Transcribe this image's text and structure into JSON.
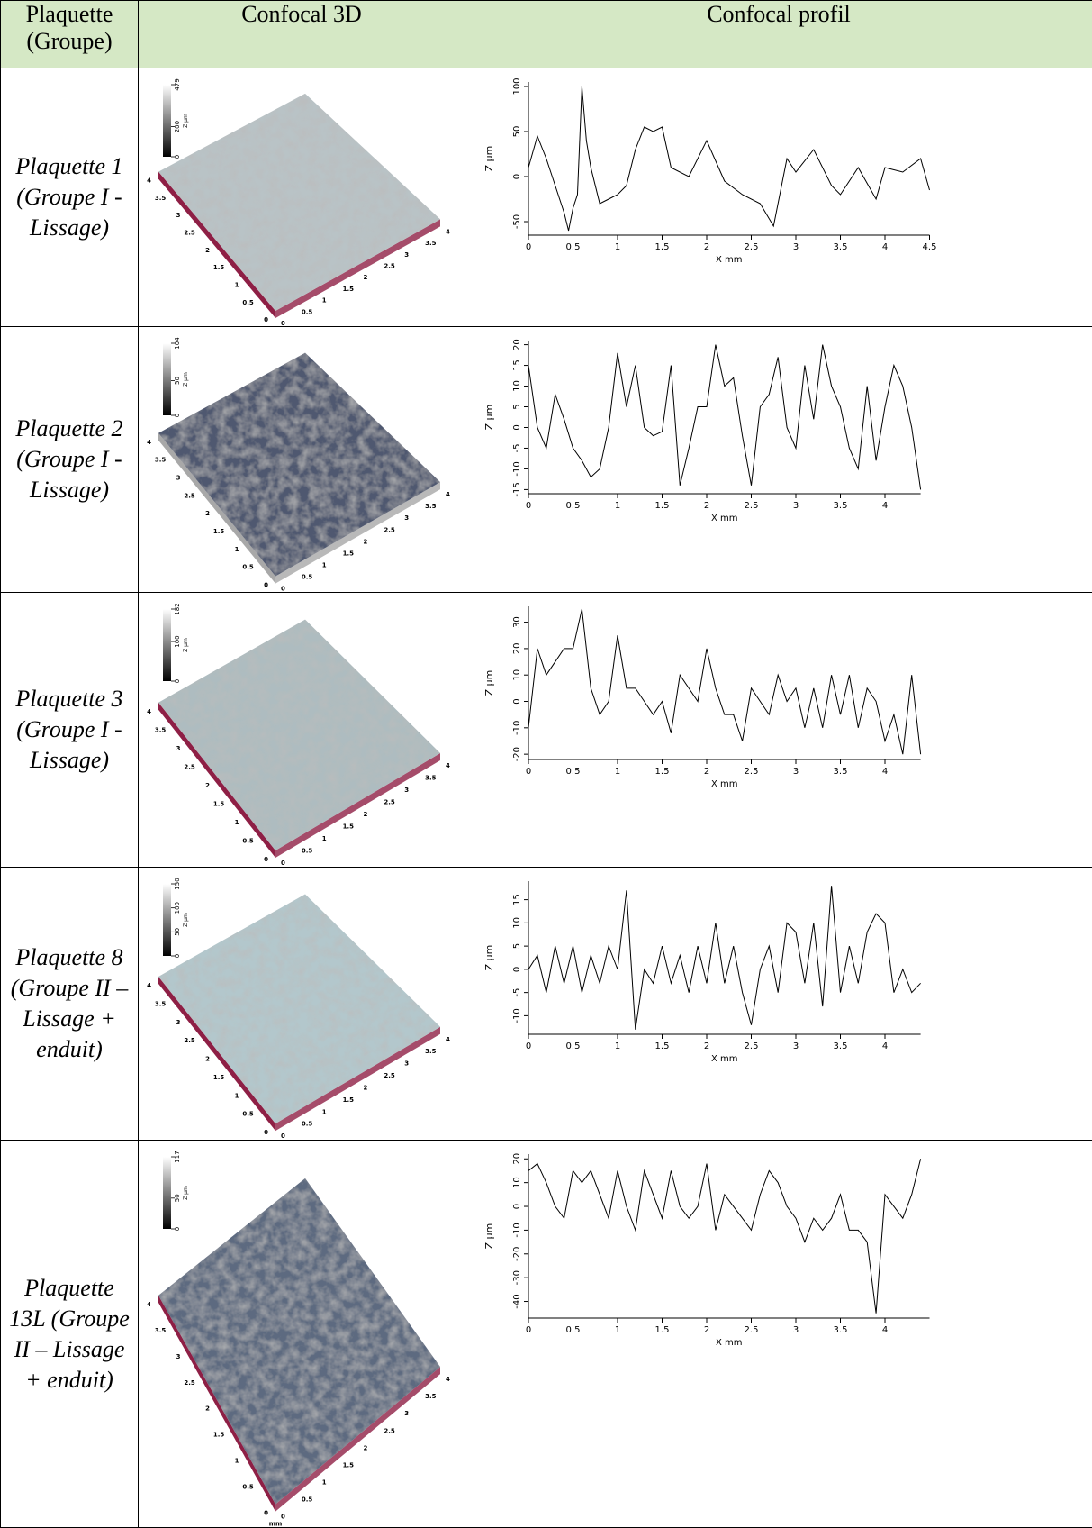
{
  "table": {
    "header": [
      "Plaquette (Groupe)",
      "Confocal 3D",
      "Confocal profil"
    ],
    "rows": [
      {
        "label": "Plaquette 1 (Groupe I - Lissage)",
        "surface": {
          "zticks": [
            0,
            200,
            479
          ],
          "zlabel": "Z µm",
          "unit": "mm",
          "axis_ticks": [
            0,
            0.5,
            1,
            1.5,
            2,
            2.5,
            3,
            3.5,
            4
          ],
          "color": "#b9c3c6",
          "edge_color": "#8e1f45"
        },
        "profile": {
          "type": "line",
          "xlabel": "X mm",
          "ylabel": "Z µm",
          "xlim": [
            0,
            4.5
          ],
          "xticks": [
            0,
            0.5,
            1,
            1.5,
            2,
            2.5,
            3,
            3.5,
            4,
            4.5
          ],
          "ylim": [
            -65,
            105
          ],
          "yticks": [
            -50,
            0,
            50,
            100
          ],
          "x": [
            0,
            0.1,
            0.2,
            0.3,
            0.4,
            0.45,
            0.5,
            0.55,
            0.6,
            0.65,
            0.7,
            0.8,
            0.9,
            1.0,
            1.1,
            1.2,
            1.3,
            1.4,
            1.5,
            1.6,
            1.8,
            2.0,
            2.2,
            2.4,
            2.6,
            2.75,
            2.9,
            3.0,
            3.2,
            3.4,
            3.5,
            3.7,
            3.9,
            4.0,
            4.2,
            4.4,
            4.5
          ],
          "values": [
            10,
            45,
            20,
            -10,
            -40,
            -60,
            -35,
            -20,
            100,
            40,
            10,
            -30,
            -25,
            -20,
            -10,
            30,
            55,
            50,
            55,
            10,
            0,
            40,
            -5,
            -20,
            -30,
            -55,
            20,
            5,
            30,
            -10,
            -20,
            10,
            -25,
            10,
            5,
            20,
            -15
          ]
        }
      },
      {
        "label": "Plaquette 2 (Groupe I - Lissage)",
        "surface": {
          "zticks": [
            0,
            50,
            104
          ],
          "zlabel": "Z µm",
          "unit": "mm",
          "axis_ticks": [
            0,
            0.5,
            1,
            1.5,
            2,
            2.5,
            3,
            3.5,
            4
          ],
          "color": "#4f5870",
          "edge_color": "#a8a8a8"
        },
        "profile": {
          "type": "line",
          "xlabel": "X mm",
          "ylabel": "Z µm",
          "xlim": [
            0,
            4.4
          ],
          "xticks": [
            0,
            0.5,
            1,
            1.5,
            2,
            2.5,
            3,
            3.5,
            4
          ],
          "ylim": [
            -16,
            21
          ],
          "yticks": [
            -15,
            -10,
            -5,
            0,
            5,
            10,
            15,
            20
          ],
          "x": [
            0,
            0.1,
            0.2,
            0.3,
            0.4,
            0.5,
            0.6,
            0.7,
            0.8,
            0.9,
            1.0,
            1.1,
            1.2,
            1.3,
            1.4,
            1.5,
            1.6,
            1.7,
            1.8,
            1.9,
            2.0,
            2.1,
            2.2,
            2.3,
            2.4,
            2.5,
            2.6,
            2.7,
            2.8,
            2.9,
            3.0,
            3.1,
            3.2,
            3.3,
            3.4,
            3.5,
            3.6,
            3.7,
            3.8,
            3.9,
            4.0,
            4.1,
            4.2,
            4.3,
            4.4
          ],
          "values": [
            15,
            0,
            -5,
            8,
            2,
            -5,
            -8,
            -12,
            -10,
            0,
            18,
            5,
            15,
            0,
            -2,
            -1,
            15,
            -14,
            -5,
            5,
            5,
            20,
            10,
            12,
            -2,
            -14,
            5,
            8,
            17,
            0,
            -5,
            15,
            2,
            20,
            10,
            5,
            -5,
            -10,
            10,
            -8,
            5,
            15,
            10,
            0,
            -15
          ]
        }
      },
      {
        "label": "Plaquette 3 (Groupe I - Lissage)",
        "surface": {
          "zticks": [
            0,
            100,
            182
          ],
          "zlabel": "Z µm",
          "unit": "mm",
          "axis_ticks": [
            0,
            0.5,
            1,
            1.5,
            2,
            2.5,
            3,
            3.5,
            4
          ],
          "color": "#aebcc0",
          "edge_color": "#8e1f45"
        },
        "profile": {
          "type": "line",
          "xlabel": "X mm",
          "ylabel": "Z µm",
          "xlim": [
            0,
            4.4
          ],
          "xticks": [
            0,
            0.5,
            1,
            1.5,
            2,
            2.5,
            3,
            3.5,
            4
          ],
          "ylim": [
            -22,
            36
          ],
          "yticks": [
            -20,
            -10,
            0,
            10,
            20,
            30
          ],
          "x": [
            0,
            0.1,
            0.2,
            0.3,
            0.4,
            0.5,
            0.6,
            0.7,
            0.8,
            0.9,
            1.0,
            1.1,
            1.2,
            1.3,
            1.4,
            1.5,
            1.6,
            1.7,
            1.8,
            1.9,
            2.0,
            2.1,
            2.2,
            2.3,
            2.4,
            2.5,
            2.6,
            2.7,
            2.8,
            2.9,
            3.0,
            3.1,
            3.2,
            3.3,
            3.4,
            3.5,
            3.6,
            3.7,
            3.8,
            3.9,
            4.0,
            4.1,
            4.2,
            4.3,
            4.4
          ],
          "values": [
            -10,
            20,
            10,
            15,
            20,
            20,
            35,
            5,
            -5,
            0,
            25,
            5,
            5,
            0,
            -5,
            0,
            -12,
            10,
            5,
            0,
            20,
            5,
            -5,
            -5,
            -15,
            5,
            0,
            -5,
            10,
            0,
            5,
            -10,
            5,
            -10,
            10,
            -5,
            10,
            -10,
            5,
            0,
            -15,
            -5,
            -20,
            10,
            -20
          ]
        }
      },
      {
        "label": "Plaquette 8 (Groupe II – Lissage + enduit)",
        "surface": {
          "zticks": [
            0,
            50,
            100,
            150
          ],
          "zlabel": "Z µm",
          "unit": "mm",
          "axis_ticks": [
            0,
            0.5,
            1,
            1.5,
            2,
            2.5,
            3,
            3.5,
            4
          ],
          "color": "#b3c7cc",
          "edge_color": "#8e1f45"
        },
        "profile": {
          "type": "line",
          "xlabel": "X mm",
          "ylabel": "Z µm",
          "xlim": [
            0,
            4.4
          ],
          "xticks": [
            0,
            0.5,
            1,
            1.5,
            2,
            2.5,
            3,
            3.5,
            4
          ],
          "ylim": [
            -14,
            19
          ],
          "yticks": [
            -10,
            -5,
            0,
            5,
            10,
            15
          ],
          "x": [
            0,
            0.1,
            0.2,
            0.3,
            0.4,
            0.5,
            0.6,
            0.7,
            0.8,
            0.9,
            1.0,
            1.1,
            1.2,
            1.3,
            1.4,
            1.5,
            1.6,
            1.7,
            1.8,
            1.9,
            2.0,
            2.1,
            2.2,
            2.3,
            2.4,
            2.5,
            2.6,
            2.7,
            2.8,
            2.9,
            3.0,
            3.1,
            3.2,
            3.3,
            3.4,
            3.5,
            3.6,
            3.7,
            3.8,
            3.9,
            4.0,
            4.1,
            4.2,
            4.3,
            4.4
          ],
          "values": [
            0,
            3,
            -5,
            5,
            -3,
            5,
            -5,
            3,
            -3,
            5,
            0,
            17,
            -13,
            0,
            -3,
            5,
            -3,
            3,
            -5,
            5,
            -3,
            10,
            -3,
            5,
            -5,
            -12,
            0,
            5,
            -5,
            10,
            8,
            -3,
            10,
            -8,
            18,
            -5,
            5,
            -3,
            8,
            12,
            10,
            -5,
            0,
            -5,
            -3
          ]
        }
      },
      {
        "label": "Plaquette 13L (Groupe II – Lissage + enduit)",
        "surface": {
          "zticks": [
            0,
            50,
            117
          ],
          "zlabel": "Z µm",
          "unit": "mm",
          "axis_ticks": [
            0,
            0.5,
            1,
            1.5,
            2,
            2.5,
            3,
            3.5,
            4
          ],
          "color": "#5d6a80",
          "edge_color": "#8e1f45"
        },
        "profile": {
          "type": "line",
          "xlabel": "X mm",
          "ylabel": "Z µm",
          "xlim": [
            0,
            4.5
          ],
          "xticks": [
            0,
            0.5,
            1,
            1.5,
            2,
            2.5,
            3,
            3.5,
            4
          ],
          "ylim": [
            -47,
            22
          ],
          "yticks": [
            -40,
            -30,
            -20,
            -10,
            0,
            10,
            20
          ],
          "x": [
            0,
            0.1,
            0.2,
            0.3,
            0.4,
            0.5,
            0.6,
            0.7,
            0.8,
            0.9,
            1.0,
            1.1,
            1.2,
            1.3,
            1.4,
            1.5,
            1.6,
            1.7,
            1.8,
            1.9,
            2.0,
            2.1,
            2.2,
            2.3,
            2.4,
            2.5,
            2.6,
            2.7,
            2.8,
            2.9,
            3.0,
            3.1,
            3.2,
            3.3,
            3.4,
            3.5,
            3.6,
            3.7,
            3.8,
            3.9,
            4.0,
            4.1,
            4.2,
            4.3,
            4.4
          ],
          "values": [
            15,
            18,
            10,
            0,
            -5,
            15,
            10,
            15,
            5,
            -5,
            15,
            0,
            -10,
            15,
            5,
            -5,
            15,
            0,
            -5,
            0,
            18,
            -10,
            5,
            0,
            -5,
            -10,
            5,
            15,
            10,
            0,
            -5,
            -15,
            -5,
            -10,
            -5,
            5,
            -10,
            -10,
            -15,
            -45,
            5,
            0,
            -5,
            5,
            20
          ]
        }
      }
    ]
  }
}
